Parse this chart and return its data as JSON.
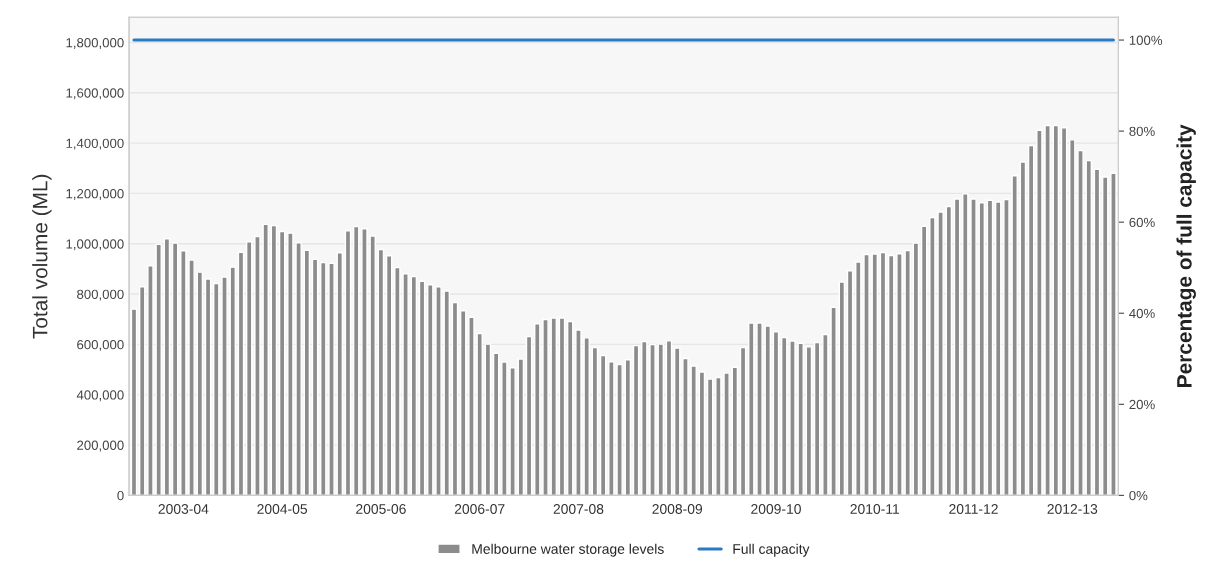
{
  "chart_data": {
    "type": "bar",
    "ylabel": "Total volume (ML)",
    "y2label": "Percentage of full capacity",
    "categories": [
      null,
      null,
      null,
      null,
      null,
      null,
      "2003-04",
      null,
      null,
      null,
      null,
      null,
      null,
      null,
      null,
      null,
      null,
      null,
      "2004-05",
      null,
      null,
      null,
      null,
      null,
      null,
      null,
      null,
      null,
      null,
      null,
      "2005-06",
      null,
      null,
      null,
      null,
      null,
      null,
      null,
      null,
      null,
      null,
      null,
      "2006-07",
      null,
      null,
      null,
      null,
      null,
      null,
      null,
      null,
      null,
      null,
      null,
      "2007-08",
      null,
      null,
      null,
      null,
      null,
      null,
      null,
      null,
      null,
      null,
      null,
      "2008-09",
      null,
      null,
      null,
      null,
      null,
      null,
      null,
      null,
      null,
      null,
      null,
      "2009-10",
      null,
      null,
      null,
      null,
      null,
      null,
      null,
      null,
      null,
      null,
      null,
      "2010-11",
      null,
      null,
      null,
      null,
      null,
      null,
      null,
      null,
      null,
      null,
      null,
      "2011-12",
      null,
      null,
      null,
      null,
      null,
      null,
      null,
      null,
      null,
      null,
      null,
      "2012-13",
      null,
      null,
      null,
      null,
      null
    ],
    "series": [
      {
        "name": "Melbourne water storage levels",
        "color": "#8c8c8c",
        "values": [
          740000,
          829000,
          912000,
          998000,
          1020000,
          1003000,
          972000,
          935000,
          887000,
          860000,
          842000,
          868000,
          907000,
          966000,
          1008000,
          1029000,
          1077000,
          1072000,
          1048000,
          1042000,
          1004000,
          974000,
          938000,
          925000,
          922000,
          964000,
          1051000,
          1068000,
          1059000,
          1031000,
          977000,
          952000,
          905000,
          881000,
          870000,
          851000,
          837000,
          829000,
          812000,
          766000,
          733000,
          708000,
          643000,
          601000,
          565000,
          530000,
          507000,
          542000,
          631000,
          682000,
          699000,
          705000,
          705000,
          691000,
          657000,
          626000,
          587000,
          556000,
          531000,
          520000,
          539000,
          595000,
          611000,
          599000,
          601000,
          614000,
          585000,
          544000,
          514000,
          490000,
          462000,
          468000,
          486000,
          509000,
          587000,
          685000,
          685000,
          673000,
          650000,
          627000,
          613000,
          604000,
          590000,
          607000,
          639000,
          747000,
          848000,
          892000,
          927000,
          957000,
          959000,
          965000,
          953000,
          960000,
          973000,
          1003000,
          1069000,
          1104000,
          1126000,
          1148000,
          1178000,
          1198000,
          1178000,
          1163000,
          1173000,
          1166000,
          1176000,
          1270000,
          1325000,
          1390000,
          1451000,
          1470000,
          1470000,
          1461000,
          1413000,
          1370000,
          1331000,
          1296000,
          1265000,
          1280000
        ]
      },
      {
        "name": "Full capacity",
        "type": "line",
        "color": "#2a7bc4",
        "values": [
          1810000,
          1810000,
          1810000,
          1810000,
          1810000,
          1810000,
          1810000,
          1810000,
          1810000,
          1810000,
          1810000,
          1810000,
          1810000,
          1810000,
          1810000,
          1810000,
          1810000,
          1810000,
          1810000,
          1810000,
          1810000,
          1810000,
          1810000,
          1810000,
          1810000,
          1810000,
          1810000,
          1810000,
          1810000,
          1810000,
          1810000,
          1810000,
          1810000,
          1810000,
          1810000,
          1810000,
          1810000,
          1810000,
          1810000,
          1810000,
          1810000,
          1810000,
          1810000,
          1810000,
          1810000,
          1810000,
          1810000,
          1810000,
          1810000,
          1810000,
          1810000,
          1810000,
          1810000,
          1810000,
          1810000,
          1810000,
          1810000,
          1810000,
          1810000,
          1810000,
          1810000,
          1810000,
          1810000,
          1810000,
          1810000,
          1810000,
          1810000,
          1810000,
          1810000,
          1810000,
          1810000,
          1810000,
          1810000,
          1810000,
          1810000,
          1810000,
          1810000,
          1810000,
          1810000,
          1810000,
          1810000,
          1810000,
          1810000,
          1810000,
          1810000,
          1810000,
          1810000,
          1810000,
          1810000,
          1810000,
          1810000,
          1810000,
          1810000,
          1810000,
          1810000,
          1810000,
          1810000,
          1810000,
          1810000,
          1810000,
          1810000,
          1810000,
          1810000,
          1810000,
          1810000,
          1810000,
          1810000,
          1810000,
          1810000,
          1810000,
          1810000,
          1810000,
          1810000,
          1810000,
          1810000,
          1810000,
          1810000,
          1810000,
          1810000,
          1810000
        ]
      }
    ],
    "ylim": [
      0,
      1900000
    ],
    "yticks": [
      0,
      {
        "value": 200000,
        "label": "200,000"
      },
      {
        "value": 400000,
        "label": "400,000"
      },
      {
        "value": 600000,
        "label": "600,000"
      },
      {
        "value": 800000,
        "label": "800,000"
      },
      {
        "value": 1000000,
        "label": "1,000,000"
      },
      {
        "value": 1200000,
        "label": "1,200,000"
      },
      {
        "value": 1400000,
        "label": "1,400,000"
      },
      {
        "value": 1600000,
        "label": "1,600,000"
      },
      {
        "value": 1800000,
        "label": "1,800,000"
      }
    ],
    "y2lim": [
      0,
      105
    ],
    "y2ticks": [
      {
        "value": 0,
        "label": "0%"
      },
      {
        "value": 20,
        "label": "20%"
      },
      {
        "value": 40,
        "label": "40%"
      },
      {
        "value": 60,
        "label": "60%"
      },
      {
        "value": 80,
        "label": "80%"
      },
      {
        "value": 100,
        "label": "100%"
      }
    ],
    "grid": "y",
    "legend": "bottom"
  }
}
